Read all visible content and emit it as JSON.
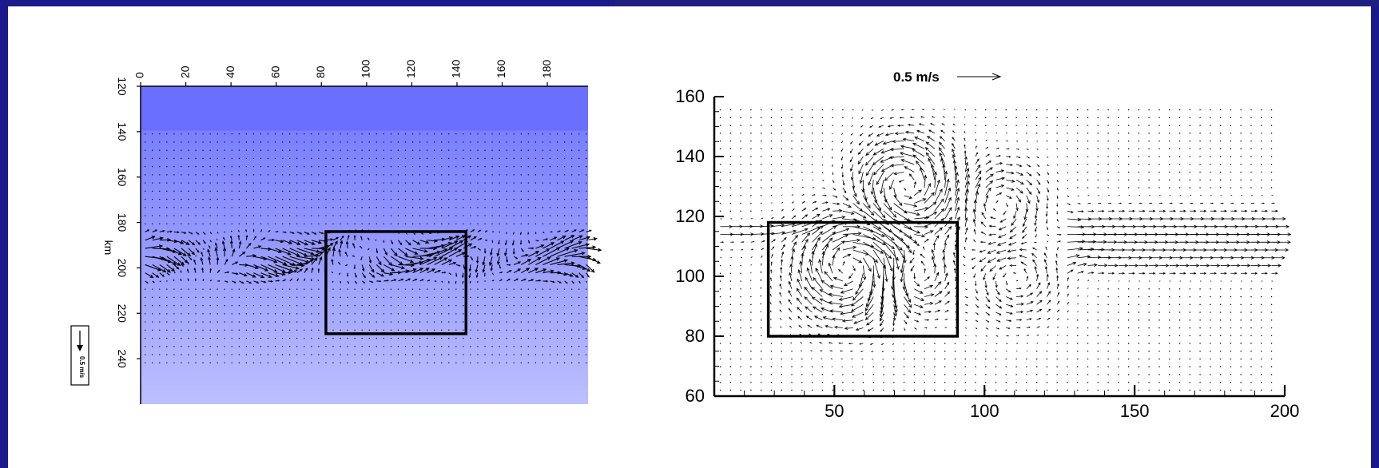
{
  "chart_data": [
    {
      "type": "vector-field",
      "xticks": [
        "0",
        "20",
        "40",
        "60",
        "80",
        "100",
        "120",
        "140",
        "160",
        "180"
      ],
      "yticks": [
        "120",
        "140",
        "160",
        "180",
        "200",
        "220",
        "240"
      ],
      "ylabel": "km",
      "xlim": [
        0,
        198
      ],
      "ylim": [
        120,
        260
      ],
      "box": {
        "x": [
          82,
          144
        ],
        "y": [
          184,
          229
        ]
      },
      "legend": "0.5 m/s",
      "background_gradient": [
        "#6a6fff",
        "#b9bcff"
      ]
    },
    {
      "type": "vector-field",
      "xticks": [
        "50",
        "100",
        "150",
        "200"
      ],
      "yticks": [
        "60",
        "80",
        "100",
        "120",
        "140",
        "160"
      ],
      "xlim": [
        10,
        200
      ],
      "ylim": [
        60,
        160
      ],
      "box": {
        "x": [
          28,
          91
        ],
        "y": [
          80,
          118
        ]
      },
      "legend": "0.5 m/s"
    }
  ],
  "colors": {
    "frame_border": "#1a1a8c",
    "panel_bg": "#ffffff"
  }
}
